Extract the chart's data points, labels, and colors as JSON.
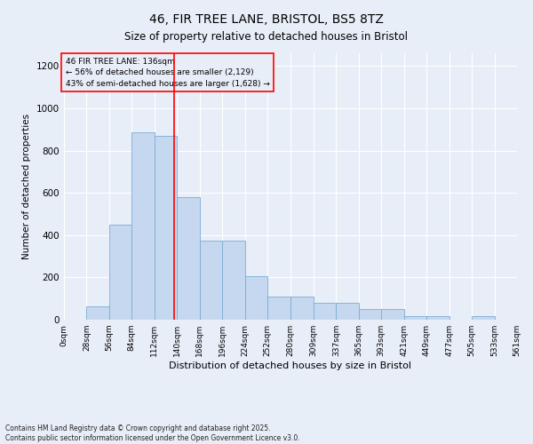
{
  "title": "46, FIR TREE LANE, BRISTOL, BS5 8TZ",
  "subtitle": "Size of property relative to detached houses in Bristol",
  "xlabel": "Distribution of detached houses by size in Bristol",
  "ylabel": "Number of detached properties",
  "property_size": 136,
  "property_label": "46 FIR TREE LANE: 136sqm",
  "annotation_line1": "← 56% of detached houses are smaller (2,129)",
  "annotation_line2": "43% of semi-detached houses are larger (1,628) →",
  "footnote1": "Contains HM Land Registry data © Crown copyright and database right 2025.",
  "footnote2": "Contains public sector information licensed under the Open Government Licence v3.0.",
  "bar_color": "#c5d8f0",
  "bar_edge_color": "#7aadd4",
  "vline_color": "red",
  "background_color": "#e8eef8",
  "annotation_box_color": "red",
  "ylim": [
    0,
    1260
  ],
  "bin_edges": [
    0,
    28,
    56,
    84,
    112,
    140,
    168,
    196,
    224,
    252,
    280,
    309,
    337,
    365,
    393,
    421,
    449,
    477,
    505,
    533,
    561
  ],
  "bin_labels": [
    "0sqm",
    "28sqm",
    "56sqm",
    "84sqm",
    "112sqm",
    "140sqm",
    "168sqm",
    "196sqm",
    "224sqm",
    "252sqm",
    "280sqm",
    "309sqm",
    "337sqm",
    "365sqm",
    "393sqm",
    "421sqm",
    "449sqm",
    "477sqm",
    "505sqm",
    "533sqm",
    "561sqm"
  ],
  "bar_heights": [
    0,
    65,
    450,
    885,
    870,
    580,
    375,
    375,
    205,
    110,
    110,
    80,
    80,
    50,
    50,
    15,
    15,
    0,
    15,
    0,
    0
  ]
}
